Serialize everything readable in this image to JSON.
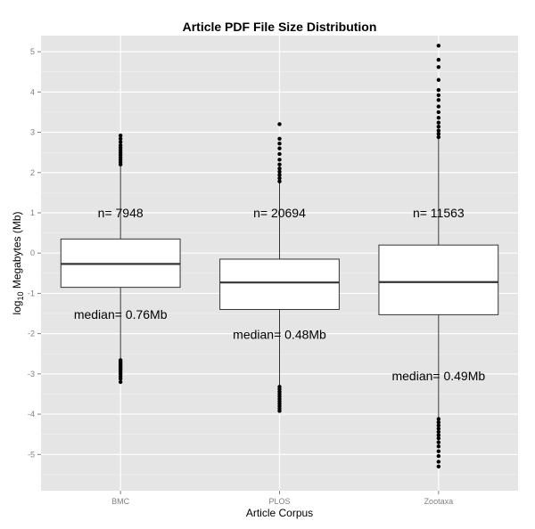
{
  "chart_data": {
    "type": "boxplot",
    "title": "Article PDF File Size Distribution",
    "xlabel": "Article Corpus",
    "ylabel_parts": [
      "log",
      "10",
      " Megabytes (Mb)"
    ],
    "categories": [
      "BMC",
      "PLOS",
      "Zootaxa"
    ],
    "ylim": [
      -5.9,
      5.4
    ],
    "yticks": [
      -5,
      -4,
      -3,
      -2,
      -1,
      0,
      1,
      2,
      3,
      4,
      5
    ],
    "ytick_labels": [
      "-5",
      "-4",
      "-3",
      "-2",
      "-1",
      "0",
      "1",
      "2",
      "3",
      "4",
      "5"
    ],
    "grid": true,
    "legend": "none",
    "boxes": [
      {
        "category": "BMC",
        "whisker_low": -2.65,
        "q1": -0.85,
        "median": -0.27,
        "q3": 0.35,
        "whisker_high": 2.18,
        "outliers_low": [
          -2.66,
          -2.7,
          -2.74,
          -2.78,
          -2.82,
          -2.86,
          -2.9,
          -2.95,
          -3.0,
          -3.06,
          -3.12,
          -3.2
        ],
        "outliers_high": [
          2.2,
          2.26,
          2.32,
          2.38,
          2.44,
          2.5,
          2.56,
          2.62,
          2.68,
          2.76,
          2.84,
          2.92
        ]
      },
      {
        "category": "PLOS",
        "whisker_low": -3.3,
        "q1": -1.4,
        "median": -0.73,
        "q3": -0.15,
        "whisker_high": 1.75,
        "outliers_low": [
          -3.32,
          -3.38,
          -3.44,
          -3.5,
          -3.56,
          -3.62,
          -3.68,
          -3.74,
          -3.8,
          -3.86,
          -3.92
        ],
        "outliers_high": [
          1.78,
          1.86,
          1.94,
          2.02,
          2.1,
          2.2,
          2.32,
          2.46,
          2.6,
          2.72,
          2.84,
          3.2
        ]
      },
      {
        "category": "Zootaxa",
        "whisker_low": -4.1,
        "q1": -1.53,
        "median": -0.72,
        "q3": 0.2,
        "whisker_high": 2.85,
        "outliers_low": [
          -4.12,
          -4.2,
          -4.28,
          -4.36,
          -4.44,
          -4.52,
          -4.6,
          -4.7,
          -4.8,
          -4.92,
          -5.04,
          -5.18,
          -5.3
        ],
        "outliers_high": [
          2.88,
          2.96,
          3.04,
          3.14,
          3.24,
          3.36,
          3.5,
          3.64,
          3.8,
          3.92,
          4.05,
          4.3,
          4.62,
          4.8,
          5.15
        ]
      }
    ],
    "annotations": [
      {
        "text": "n= 7948",
        "category": "BMC",
        "y": 1.0
      },
      {
        "text": "n= 20694",
        "category": "PLOS",
        "y": 1.0
      },
      {
        "text": "n= 11563",
        "category": "Zootaxa",
        "y": 1.0
      },
      {
        "text": "median= 0.76Mb",
        "category": "BMC",
        "y": -1.52
      },
      {
        "text": "median= 0.48Mb",
        "category": "PLOS",
        "y": -2.02
      },
      {
        "text": "median= 0.49Mb",
        "category": "Zootaxa",
        "y": -3.05
      }
    ]
  }
}
